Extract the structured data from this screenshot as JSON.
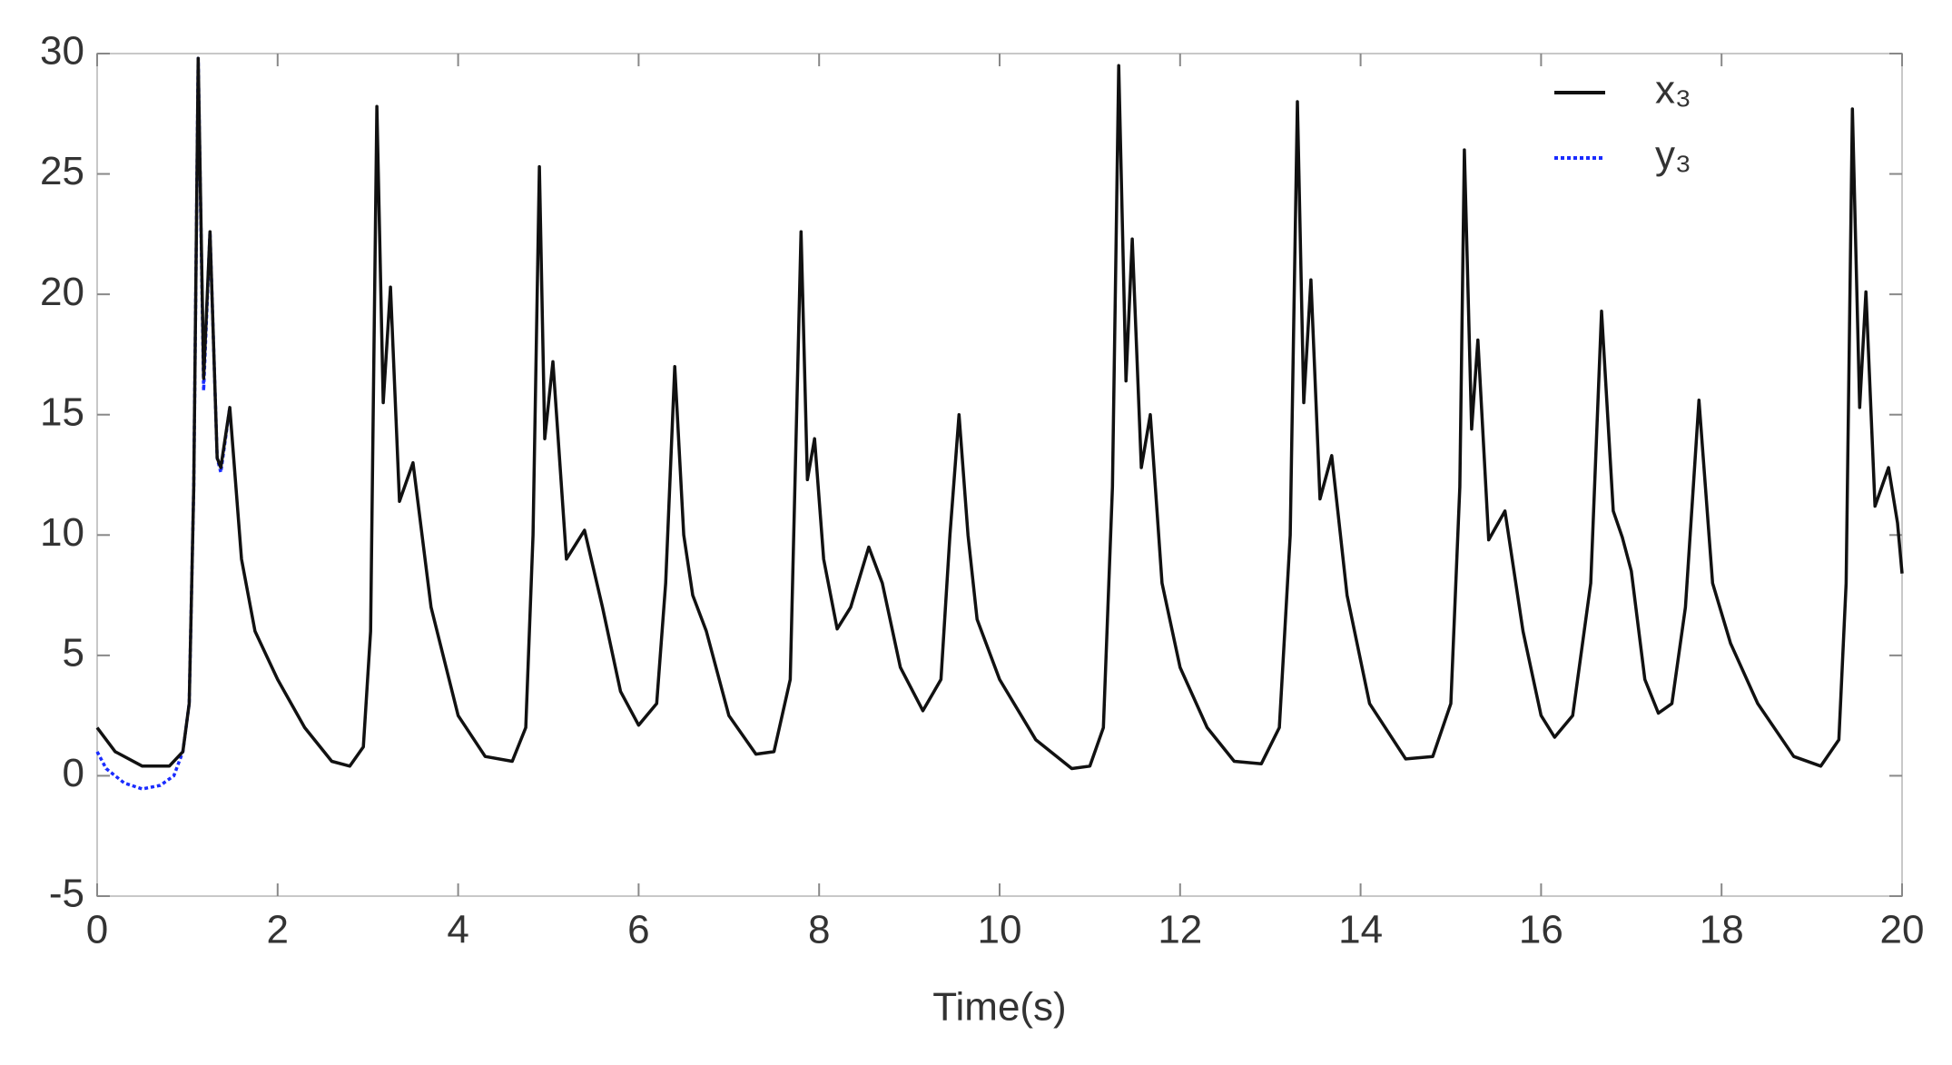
{
  "chart_data": {
    "type": "line",
    "x_label": "Time(s)",
    "xlim": [
      0,
      20
    ],
    "xticks": [
      0,
      2,
      4,
      6,
      8,
      10,
      12,
      14,
      16,
      18,
      20
    ],
    "ylim": [
      -5,
      30
    ],
    "yticks": [
      -5,
      0,
      5,
      10,
      15,
      20,
      25,
      30
    ],
    "grid": false,
    "legend": "upper right",
    "series": [
      {
        "name": "x₃",
        "color": "#111111",
        "style": "solid",
        "x": [
          0,
          0.2,
          0.5,
          0.8,
          0.95,
          1.02,
          1.07,
          1.12,
          1.18,
          1.25,
          1.33,
          1.37,
          1.47,
          1.6,
          1.75,
          2.0,
          2.3,
          2.6,
          2.8,
          2.95,
          3.03,
          3.1,
          3.17,
          3.25,
          3.35,
          3.5,
          3.7,
          4.0,
          4.3,
          4.6,
          4.75,
          4.83,
          4.9,
          4.96,
          5.05,
          5.2,
          5.4,
          5.6,
          5.8,
          6.0,
          6.2,
          6.3,
          6.4,
          6.5,
          6.6,
          6.75,
          7.0,
          7.3,
          7.5,
          7.68,
          7.8,
          7.87,
          7.95,
          8.05,
          8.2,
          8.35,
          8.55,
          8.7,
          8.9,
          9.15,
          9.35,
          9.45,
          9.55,
          9.65,
          9.75,
          10.0,
          10.4,
          10.8,
          11.0,
          11.15,
          11.25,
          11.32,
          11.4,
          11.47,
          11.57,
          11.67,
          11.8,
          12.0,
          12.3,
          12.6,
          12.9,
          13.1,
          13.22,
          13.3,
          13.37,
          13.45,
          13.55,
          13.68,
          13.85,
          14.1,
          14.5,
          14.8,
          15.0,
          15.1,
          15.15,
          15.23,
          15.3,
          15.42,
          15.6,
          15.8,
          16.0,
          16.15,
          16.35,
          16.55,
          16.67,
          16.8,
          16.9,
          17.0,
          17.15,
          17.3,
          17.45,
          17.6,
          17.75,
          17.9,
          18.1,
          18.4,
          18.8,
          19.1,
          19.3,
          19.38,
          19.45,
          19.53,
          19.6,
          19.7,
          19.85,
          19.95,
          20
        ],
        "values": [
          2.0,
          1.0,
          0.4,
          0.4,
          1.0,
          3,
          12,
          29.8,
          16.5,
          22.6,
          13.2,
          12.8,
          15.3,
          9,
          6,
          4,
          2,
          0.6,
          0.4,
          1.2,
          6,
          27.8,
          15.5,
          20.3,
          11.4,
          13,
          7,
          2.5,
          0.8,
          0.6,
          2,
          10,
          25.3,
          14,
          17.2,
          9,
          10.2,
          7,
          3.5,
          2.1,
          3,
          8,
          17,
          10,
          7.5,
          6,
          2.5,
          0.9,
          1,
          4,
          22.6,
          12.3,
          14,
          9,
          6.1,
          7,
          9.5,
          8,
          4.5,
          2.7,
          4,
          10,
          15,
          10,
          6.5,
          4,
          1.5,
          0.3,
          0.4,
          2,
          12,
          29.5,
          16.4,
          22.3,
          12.8,
          15,
          8,
          4.5,
          2,
          0.6,
          0.5,
          2,
          10,
          28,
          15.5,
          20.6,
          11.5,
          13.3,
          7.5,
          3,
          0.7,
          0.8,
          3,
          12,
          26,
          14.4,
          18.1,
          9.8,
          11,
          6,
          2.5,
          1.6,
          2.5,
          8,
          19.3,
          11,
          9.9,
          8.5,
          4,
          2.6,
          3,
          7,
          15.6,
          8,
          5.5,
          3,
          0.8,
          0.4,
          1.5,
          8,
          27.7,
          15.3,
          20.1,
          11.2,
          12.8,
          10.5,
          8.4
        ]
      },
      {
        "name": "y₃",
        "color": "#1a2cff",
        "style": "dotted",
        "x": [
          0,
          0.1,
          0.3,
          0.5,
          0.7,
          0.85,
          0.95,
          1.02,
          1.07,
          1.12,
          1.18,
          1.25,
          1.33,
          1.37,
          1.47
        ],
        "values": [
          1.0,
          0.3,
          -0.3,
          -0.55,
          -0.4,
          0,
          1.0,
          3,
          12,
          29.8,
          16.0,
          22.6,
          13.2,
          12.6,
          15.3
        ]
      }
    ]
  }
}
